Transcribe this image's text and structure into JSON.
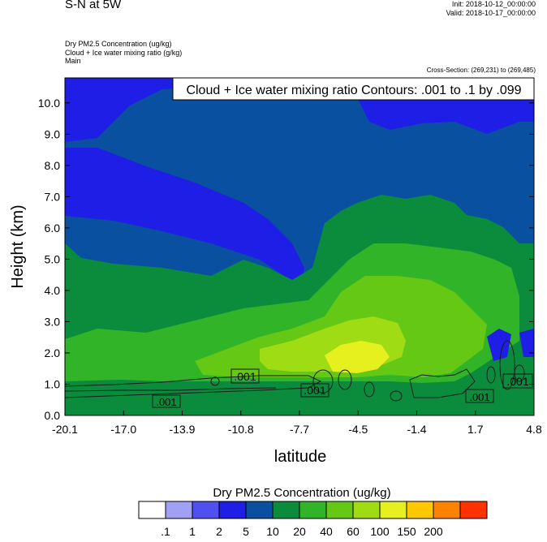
{
  "header": {
    "title": "S-N at 5W",
    "init": "Init: 2018-10-12_00:00:00",
    "valid": "Valid: 2018-10-17_00:00:00",
    "field1": "Dry PM2.5 Concentration   (ug/kg)",
    "field2": "Cloud + Ice water mixing ratio   (g/kg)",
    "field3": "Main",
    "cross_section": "Cross-Section: (269,231) to (269,485)"
  },
  "chart_data": {
    "type": "heatmap",
    "contour_label": "Cloud + Ice water mixing ratio Contours: .001 to .1 by .099",
    "xlabel": "latitude",
    "ylabel": "Height (km)",
    "x_ticks": [
      "-20.1",
      "-17.0",
      "-13.9",
      "-10.8",
      "-7.7",
      "-4.5",
      "-1.4",
      "1.7",
      "4.8"
    ],
    "y_ticks": [
      "0.0",
      "1.0",
      "2.0",
      "3.0",
      "4.0",
      "5.0",
      "6.0",
      "7.0",
      "8.0",
      "9.0",
      "10.0"
    ],
    "xlim": [
      -20.1,
      4.8
    ],
    "ylim": [
      0.0,
      10.8
    ],
    "contour_value_labels": [
      ".001",
      ".001",
      ".001",
      ".001",
      ".001"
    ],
    "colorbar": {
      "title": "Dry PM2.5 Concentration  (ug/kg)",
      "labels": [
        ".1",
        "1",
        "2",
        "5",
        "10",
        "20",
        "40",
        "60",
        "100",
        "150",
        "200"
      ],
      "colors": [
        "#ffffff",
        "#a0a0f5",
        "#5050f0",
        "#1e1ee6",
        "#0a50a0",
        "#0a8c3c",
        "#32b428",
        "#64c814",
        "#a0dc14",
        "#e6f01e",
        "#ffc800",
        "#ff8200",
        "#ff3200"
      ]
    }
  }
}
